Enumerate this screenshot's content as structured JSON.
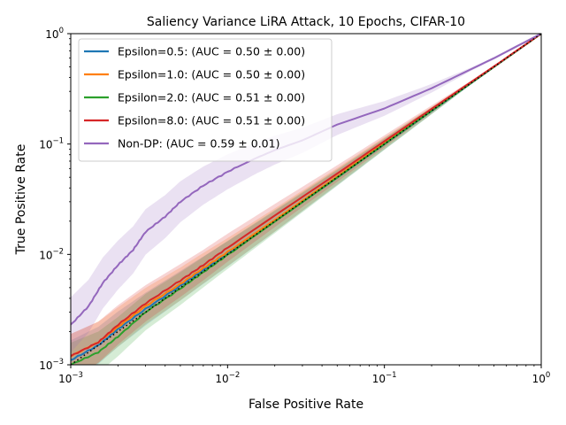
{
  "chart_data": {
    "type": "line",
    "title": "Saliency Variance LiRA Attack, 10 Epochs, CIFAR-10",
    "xlabel": "False Positive Rate",
    "ylabel": "True Positive Rate",
    "xscale": "log",
    "yscale": "log",
    "xlim": [
      0.001,
      1
    ],
    "ylim": [
      0.001,
      1
    ],
    "grid": false,
    "legend_position": "top-left",
    "x_ticks": [
      {
        "value": 0.001,
        "base": "10",
        "exp": "−3"
      },
      {
        "value": 0.01,
        "base": "10",
        "exp": "−2"
      },
      {
        "value": 0.1,
        "base": "10",
        "exp": "−1"
      },
      {
        "value": 1,
        "base": "10",
        "exp": "0"
      }
    ],
    "y_ticks": [
      {
        "value": 0.001,
        "base": "10",
        "exp": "−3"
      },
      {
        "value": 0.01,
        "base": "10",
        "exp": "−2"
      },
      {
        "value": 0.1,
        "base": "10",
        "exp": "−1"
      },
      {
        "value": 1,
        "base": "10",
        "exp": "0"
      }
    ],
    "reference_line": {
      "style": "dotted",
      "color": "#000000",
      "x": [
        0.001,
        1
      ],
      "y": [
        0.001,
        1
      ]
    },
    "series": [
      {
        "name": "Epsilon=0.5: (AUC = 0.50 ± 0.00)",
        "color": "#1f77b4",
        "x": [
          0.001,
          0.0015,
          0.002,
          0.003,
          0.005,
          0.007,
          0.01,
          0.02,
          0.05,
          0.1,
          0.2,
          0.5,
          1
        ],
        "y": [
          0.0011,
          0.0015,
          0.0021,
          0.0032,
          0.0052,
          0.0072,
          0.0101,
          0.0199,
          0.0495,
          0.0995,
          0.199,
          0.499,
          1
        ],
        "band": 0.18
      },
      {
        "name": "Epsilon=1.0: (AUC = 0.50 ± 0.00)",
        "color": "#ff7f0e",
        "x": [
          0.001,
          0.0015,
          0.002,
          0.003,
          0.005,
          0.007,
          0.01,
          0.02,
          0.05,
          0.1,
          0.2,
          0.5,
          1
        ],
        "y": [
          0.0012,
          0.0016,
          0.0022,
          0.0034,
          0.0054,
          0.0075,
          0.0105,
          0.0205,
          0.051,
          0.102,
          0.202,
          0.501,
          1
        ],
        "band": 0.2
      },
      {
        "name": "Epsilon=2.0: (AUC = 0.51 ± 0.00)",
        "color": "#2ca02c",
        "x": [
          0.001,
          0.0015,
          0.002,
          0.003,
          0.005,
          0.007,
          0.01,
          0.02,
          0.05,
          0.1,
          0.2,
          0.5,
          1
        ],
        "y": [
          0.001,
          0.0013,
          0.0018,
          0.003,
          0.0049,
          0.0069,
          0.0099,
          0.0198,
          0.0497,
          0.1,
          0.2,
          0.5,
          1
        ],
        "band": 0.2
      },
      {
        "name": "Epsilon=8.0: (AUC = 0.51 ± 0.00)",
        "color": "#d62728",
        "x": [
          0.001,
          0.0015,
          0.002,
          0.003,
          0.005,
          0.007,
          0.01,
          0.02,
          0.05,
          0.1,
          0.2,
          0.5,
          1
        ],
        "y": [
          0.0012,
          0.0016,
          0.0023,
          0.0036,
          0.0058,
          0.008,
          0.0115,
          0.0225,
          0.054,
          0.106,
          0.208,
          0.505,
          1
        ],
        "band": 0.2
      },
      {
        "name": "Non-DP: (AUC = 0.59 ± 0.01)",
        "color": "#9467bd",
        "x": [
          0.001,
          0.0013,
          0.0016,
          0.002,
          0.0025,
          0.003,
          0.004,
          0.005,
          0.007,
          0.01,
          0.015,
          0.02,
          0.03,
          0.05,
          0.1,
          0.2,
          0.5,
          1
        ],
        "y": [
          0.0023,
          0.0034,
          0.0055,
          0.008,
          0.011,
          0.016,
          0.022,
          0.03,
          0.042,
          0.056,
          0.074,
          0.088,
          0.108,
          0.15,
          0.21,
          0.32,
          0.6,
          1
        ],
        "band": 0.25
      }
    ]
  }
}
